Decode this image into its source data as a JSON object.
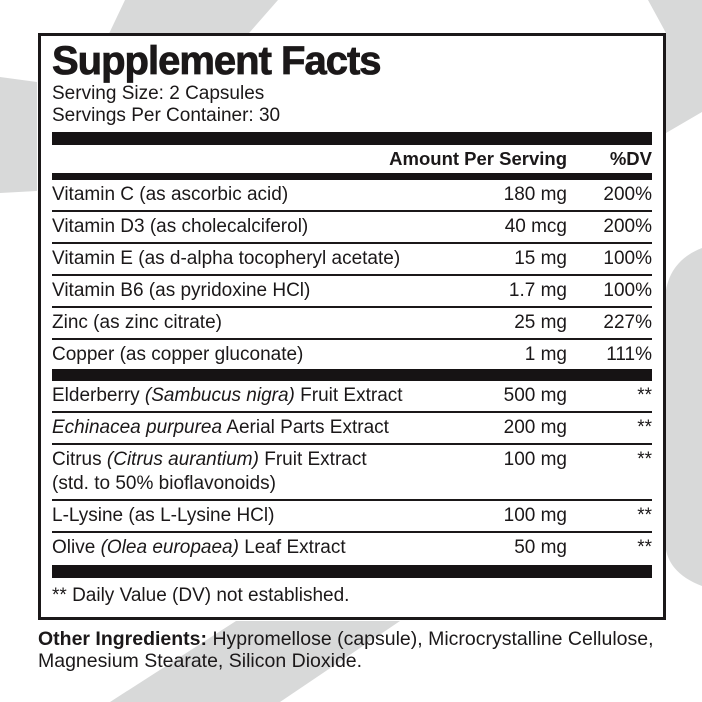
{
  "colors": {
    "ink": "#1b1819",
    "shape_gray": "#d8d9d9",
    "panel_bg": "#ffffff"
  },
  "label": {
    "title": "Supplement Facts",
    "serving_size": "Serving Size: 2 Capsules",
    "servings_per_container": "Servings Per Container: 30",
    "header": {
      "amount": "Amount Per Serving",
      "dv": "%DV"
    },
    "sections": [
      {
        "rows": [
          {
            "name": [
              {
                "t": "Vitamin C (as ascorbic acid)"
              }
            ],
            "amount": "180 mg",
            "dv": "200%"
          },
          {
            "name": [
              {
                "t": "Vitamin D3 (as cholecalciferol)"
              }
            ],
            "amount": "40 mcg",
            "dv": "200%"
          },
          {
            "name": [
              {
                "t": "Vitamin E (as d-alpha tocopheryl acetate)"
              }
            ],
            "amount": "15 mg",
            "dv": "100%"
          },
          {
            "name": [
              {
                "t": "Vitamin B6 (as pyridoxine HCl)"
              }
            ],
            "amount": "1.7 mg",
            "dv": "100%"
          },
          {
            "name": [
              {
                "t": "Zinc (as zinc citrate)"
              }
            ],
            "amount": "25 mg",
            "dv": "227%"
          },
          {
            "name": [
              {
                "t": "Copper (as copper gluconate)"
              }
            ],
            "amount": "1 mg",
            "dv": "111%"
          }
        ]
      },
      {
        "rows": [
          {
            "name": [
              {
                "t": "Elderberry "
              },
              {
                "t": "(Sambucus nigra)",
                "i": true
              },
              {
                "t": " Fruit Extract"
              }
            ],
            "amount": "500 mg",
            "dv": "**"
          },
          {
            "name": [
              {
                "t": "Echinacea purpurea",
                "i": true
              },
              {
                "t": " Aerial Parts Extract"
              }
            ],
            "amount": "200 mg",
            "dv": "**"
          },
          {
            "name": [
              {
                "t": "Citrus "
              },
              {
                "t": "(Citrus aurantium)",
                "i": true
              },
              {
                "t": " Fruit Extract"
              }
            ],
            "name_line2": "(std. to 50% bioflavonoids)",
            "amount": "100 mg",
            "dv": "**"
          },
          {
            "name": [
              {
                "t": "L-Lysine (as L-Lysine HCl)"
              }
            ],
            "amount": "100 mg",
            "dv": "**"
          },
          {
            "name": [
              {
                "t": "Olive "
              },
              {
                "t": "(Olea europaea)",
                "i": true
              },
              {
                "t": " Leaf Extract"
              }
            ],
            "amount": "50 mg",
            "dv": "**"
          }
        ]
      }
    ],
    "footnote": "** Daily Value (DV) not established."
  },
  "other_ingredients": {
    "label": "Other Ingredients:",
    "text": " Hypromellose (capsule), Microcrystalline Cellulose, Magnesium Stearate, Silicon Dioxide."
  }
}
